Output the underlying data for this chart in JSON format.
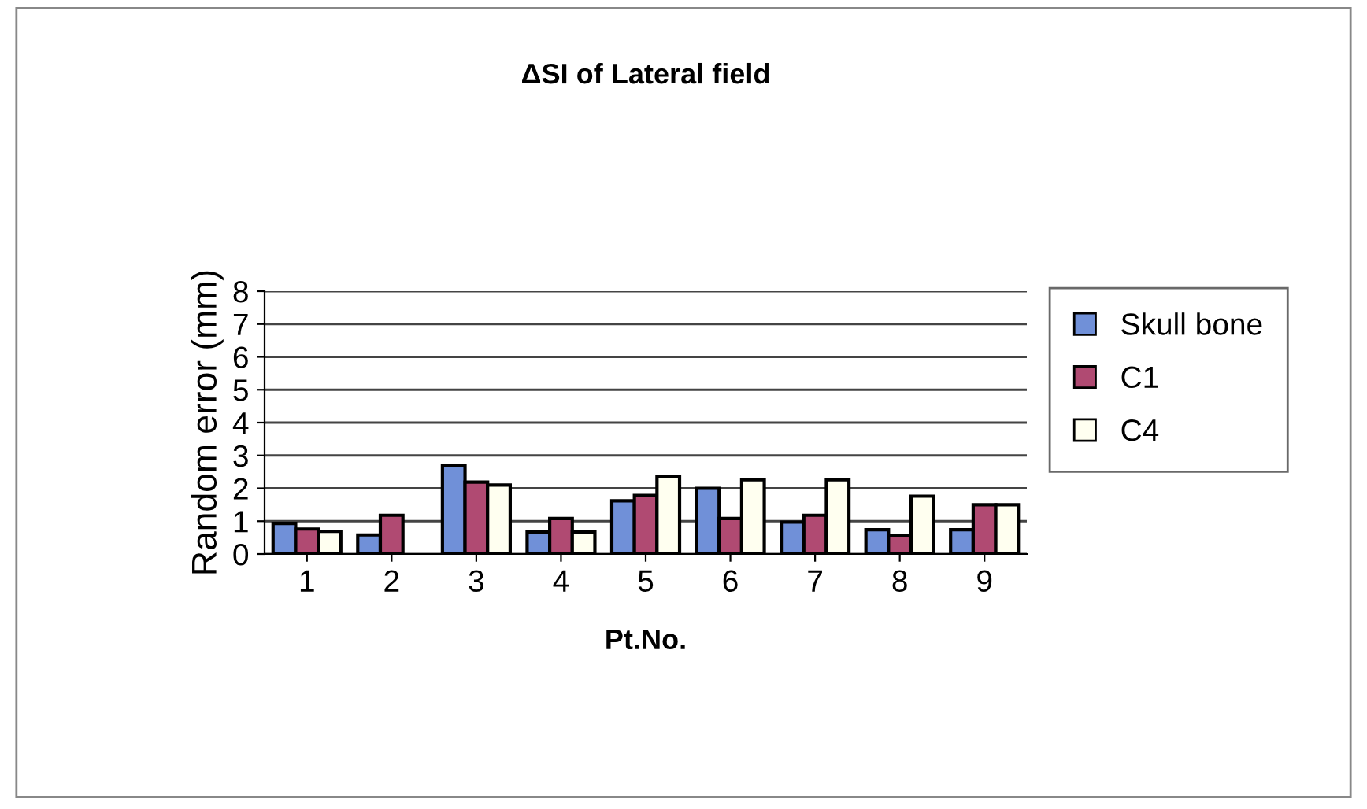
{
  "chart_data": {
    "type": "bar",
    "title": "ΔSI of Lateral field",
    "xlabel": "Pt.No.",
    "ylabel": "Random error (mm)",
    "categories": [
      "1",
      "2",
      "3",
      "4",
      "5",
      "6",
      "7",
      "8",
      "9"
    ],
    "series": [
      {
        "name": "Skull bone",
        "color": "#7090d8",
        "values": [
          0.93,
          0.58,
          2.7,
          0.67,
          1.62,
          2.0,
          0.97,
          0.74,
          0.74
        ]
      },
      {
        "name": "C1",
        "color": "#b04a72",
        "values": [
          0.76,
          1.18,
          2.19,
          1.08,
          1.78,
          1.08,
          1.18,
          0.56,
          1.5
        ]
      },
      {
        "name": "C4",
        "color": "#fffff0",
        "values": [
          0.69,
          null,
          2.1,
          0.67,
          2.35,
          2.26,
          2.26,
          1.76,
          1.5
        ]
      }
    ],
    "ylim": [
      0,
      8
    ],
    "yticks": [
      0,
      1,
      2,
      3,
      4,
      5,
      6,
      7,
      8
    ],
    "grid": "y",
    "legend": "right"
  }
}
